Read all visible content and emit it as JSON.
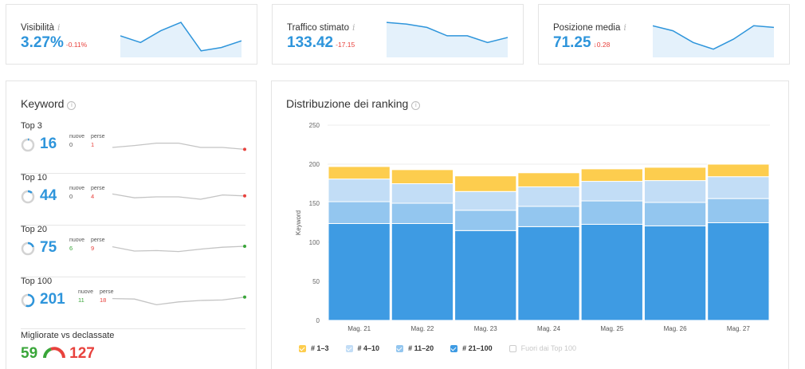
{
  "metrics": [
    {
      "label": "Visibilità",
      "value": "3.27%",
      "delta": "-0.11%",
      "info_icon": "info-icon",
      "spark": [
        0.55,
        0.35,
        0.7,
        0.95,
        0.1,
        0.2,
        0.4
      ]
    },
    {
      "label": "Traffico stimato",
      "value": "133.42",
      "delta": "-17.15",
      "info_icon": "info-icon",
      "spark": [
        0.95,
        0.9,
        0.8,
        0.55,
        0.55,
        0.35,
        0.5
      ]
    },
    {
      "label": "Posizione media",
      "value": "71.25",
      "delta": "↓0.28",
      "info_icon": "info-icon",
      "spark": [
        0.85,
        0.7,
        0.35,
        0.15,
        0.45,
        0.85,
        0.8
      ]
    }
  ],
  "keyword": {
    "title": "Keyword",
    "rows": [
      {
        "name": "Top 3",
        "count": "16",
        "new_label": "nuove",
        "lost_label": "perse",
        "new": "0",
        "lost": "1",
        "ring_fill": 0.03,
        "spark": [
          0.25,
          0.45,
          0.7,
          0.7,
          0.25,
          0.25,
          0.05
        ],
        "end_color": "#e8423d"
      },
      {
        "name": "Top 10",
        "count": "44",
        "new_label": "nuove",
        "lost_label": "perse",
        "new": "0",
        "lost": "4",
        "ring_fill": 0.12,
        "spark": [
          0.8,
          0.4,
          0.5,
          0.5,
          0.25,
          0.7,
          0.6
        ],
        "end_color": "#e8423d"
      },
      {
        "name": "Top 20",
        "count": "75",
        "new_label": "nuove",
        "lost_label": "perse",
        "new": "6",
        "lost": "9",
        "ring_fill": 0.2,
        "spark": [
          0.7,
          0.25,
          0.3,
          0.2,
          0.45,
          0.65,
          0.75
        ],
        "end_color": "#3aa63a"
      },
      {
        "name": "Top 100",
        "count": "201",
        "new_label": "nuove",
        "lost_label": "perse",
        "new": "11",
        "lost": "18",
        "ring_fill": 0.55,
        "spark": [
          0.7,
          0.65,
          0.05,
          0.35,
          0.5,
          0.55,
          0.85
        ],
        "end_color": "#3aa63a"
      }
    ],
    "improved_title": "Migliorate vs declassate",
    "improved": "59",
    "declined": "127"
  },
  "ranking": {
    "title": "Distribuzione dei ranking",
    "legend": [
      {
        "label": "# 1–3",
        "color": "#fdcd4e",
        "checked": true
      },
      {
        "label": "# 4–10",
        "color": "#c2ddf6",
        "checked": true
      },
      {
        "label": "# 11–20",
        "color": "#93c6ef",
        "checked": true
      },
      {
        "label": "# 21–100",
        "color": "#3e9be3",
        "checked": true
      },
      {
        "label": "Fuori dai Top 100",
        "color": "#ffffff",
        "checked": false
      }
    ]
  },
  "chart_data": {
    "type": "bar",
    "stacked": true,
    "categories": [
      "Mag. 21",
      "Mag. 22",
      "Mag. 23",
      "Mag. 24",
      "Mag. 25",
      "Mag. 26",
      "Mag. 27"
    ],
    "series": [
      {
        "name": "# 21–100",
        "color": "#3e9be3",
        "values": [
          124,
          124,
          115,
          120,
          123,
          121,
          125
        ]
      },
      {
        "name": "# 11–20",
        "color": "#93c6ef",
        "values": [
          28,
          26,
          26,
          26,
          30,
          30,
          31
        ]
      },
      {
        "name": "# 4–10",
        "color": "#c2ddf6",
        "values": [
          29,
          25,
          24,
          25,
          25,
          28,
          28
        ]
      },
      {
        "name": "# 1–3",
        "color": "#fdcd4e",
        "values": [
          16,
          18,
          20,
          18,
          16,
          17,
          16
        ]
      }
    ],
    "ylabel": "Keyword",
    "xlabel": "",
    "ylim": [
      0,
      250
    ],
    "yticks": [
      0,
      50,
      100,
      150,
      200,
      250
    ],
    "grid": true,
    "legend": "bottom"
  }
}
